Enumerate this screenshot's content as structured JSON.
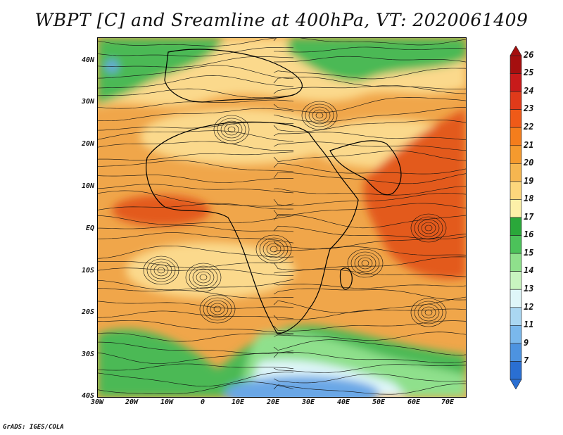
{
  "title": "WBPT [C] and Sreamline at 400hPa, VT: 2020061409",
  "credit": "GrADS: IGES/COLA",
  "axes": {
    "y_labels": [
      "40N",
      "30N",
      "20N",
      "10N",
      "EQ",
      "10S",
      "20S",
      "30S",
      "40S"
    ],
    "x_labels": [
      "30W",
      "20W",
      "10W",
      "0",
      "10E",
      "20E",
      "30E",
      "40E",
      "50E",
      "60E",
      "70E"
    ]
  },
  "colorbar": {
    "labels": [
      "26",
      "25",
      "24",
      "23",
      "22",
      "21",
      "20",
      "19",
      "18",
      "17",
      "16",
      "15",
      "14",
      "13",
      "12",
      "11",
      "9",
      "7"
    ],
    "colors": [
      "#a50f0f",
      "#c81a1a",
      "#e03a1a",
      "#ef5a18",
      "#f47d1c",
      "#f59a2e",
      "#f6b650",
      "#fdd77c",
      "#fdf0a8",
      "#2aa83a",
      "#4cc25a",
      "#8fe08c",
      "#c8f5c0",
      "#dff6f9",
      "#aad7f2",
      "#7ab8ec",
      "#4d93e0",
      "#2a6fd2"
    ]
  },
  "legend": "extended colorbar, right of map",
  "map_colors": {
    "warm": "#f0a64a",
    "very_warm": "#e35a1f",
    "light": "#fbd98c",
    "green": "#4cb954",
    "light_green": "#8fe08c",
    "cyan": "#dff6f9",
    "blue": "#6aa7e6"
  }
}
